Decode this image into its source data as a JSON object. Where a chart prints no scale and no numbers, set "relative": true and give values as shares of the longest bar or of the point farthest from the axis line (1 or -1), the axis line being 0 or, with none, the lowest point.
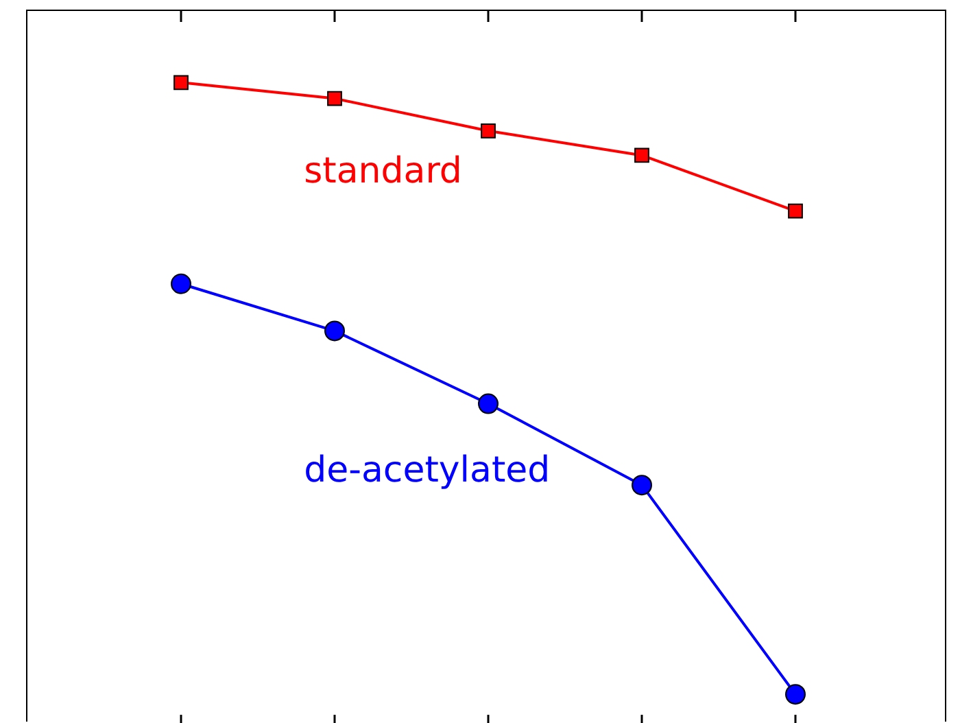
{
  "chart_data": {
    "type": "line",
    "relative": true,
    "categories": [
      null,
      null,
      null,
      null,
      null
    ],
    "legend": false,
    "series": [
      {
        "name": "standard",
        "color": "#ff0000",
        "marker": "square",
        "values": [
          1,
          0.974,
          0.921,
          0.881,
          0.79
        ]
      },
      {
        "name": "de-acetylated",
        "color": "#0000ff",
        "marker": "circle",
        "values": [
          0.671,
          0.594,
          0.475,
          0.342,
          0
        ]
      }
    ]
  }
}
